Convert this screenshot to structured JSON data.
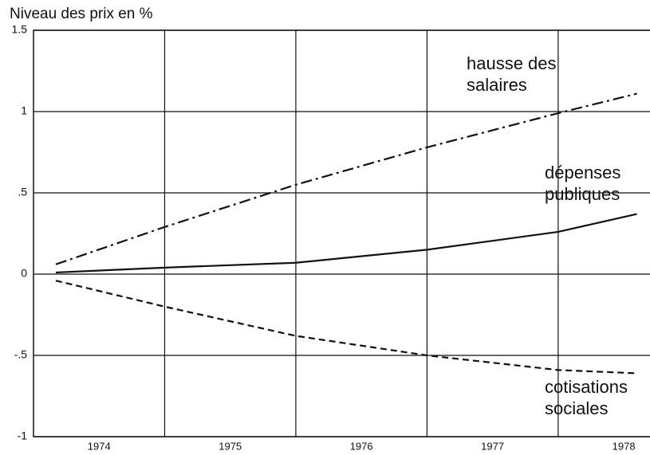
{
  "chart_data": {
    "type": "line",
    "y_label": "Niveau des prix en %",
    "categories": [
      "1974",
      "1975",
      "1976",
      "1977",
      "1978"
    ],
    "xlim": [
      1974,
      1978.7
    ],
    "xgrid": [
      1975,
      1976,
      1977,
      1978
    ],
    "ylim": [
      -1,
      1.5
    ],
    "yticks": [
      -1,
      {
        "value": -0.5,
        "label": "-.5"
      },
      0,
      {
        "value": 0.5,
        "label": ".5"
      },
      1,
      1.5
    ],
    "grid": true,
    "x": [
      1974.17,
      1975,
      1976,
      1977,
      1978,
      1978.6
    ],
    "series": [
      {
        "name": "hausse des salaires",
        "color": "#111111",
        "dash": "dashdot",
        "values": [
          0.06,
          0.29,
          0.55,
          0.78,
          0.99,
          1.11
        ]
      },
      {
        "name": "dépenses publiques",
        "color": "#111111",
        "dash": "solid",
        "values": [
          0.01,
          0.04,
          0.07,
          0.15,
          0.26,
          0.37
        ]
      },
      {
        "name": "cotisations sociales",
        "color": "#111111",
        "dash": "dashed",
        "values": [
          -0.04,
          -0.2,
          -0.38,
          -0.5,
          -0.59,
          -0.61
        ]
      }
    ]
  }
}
